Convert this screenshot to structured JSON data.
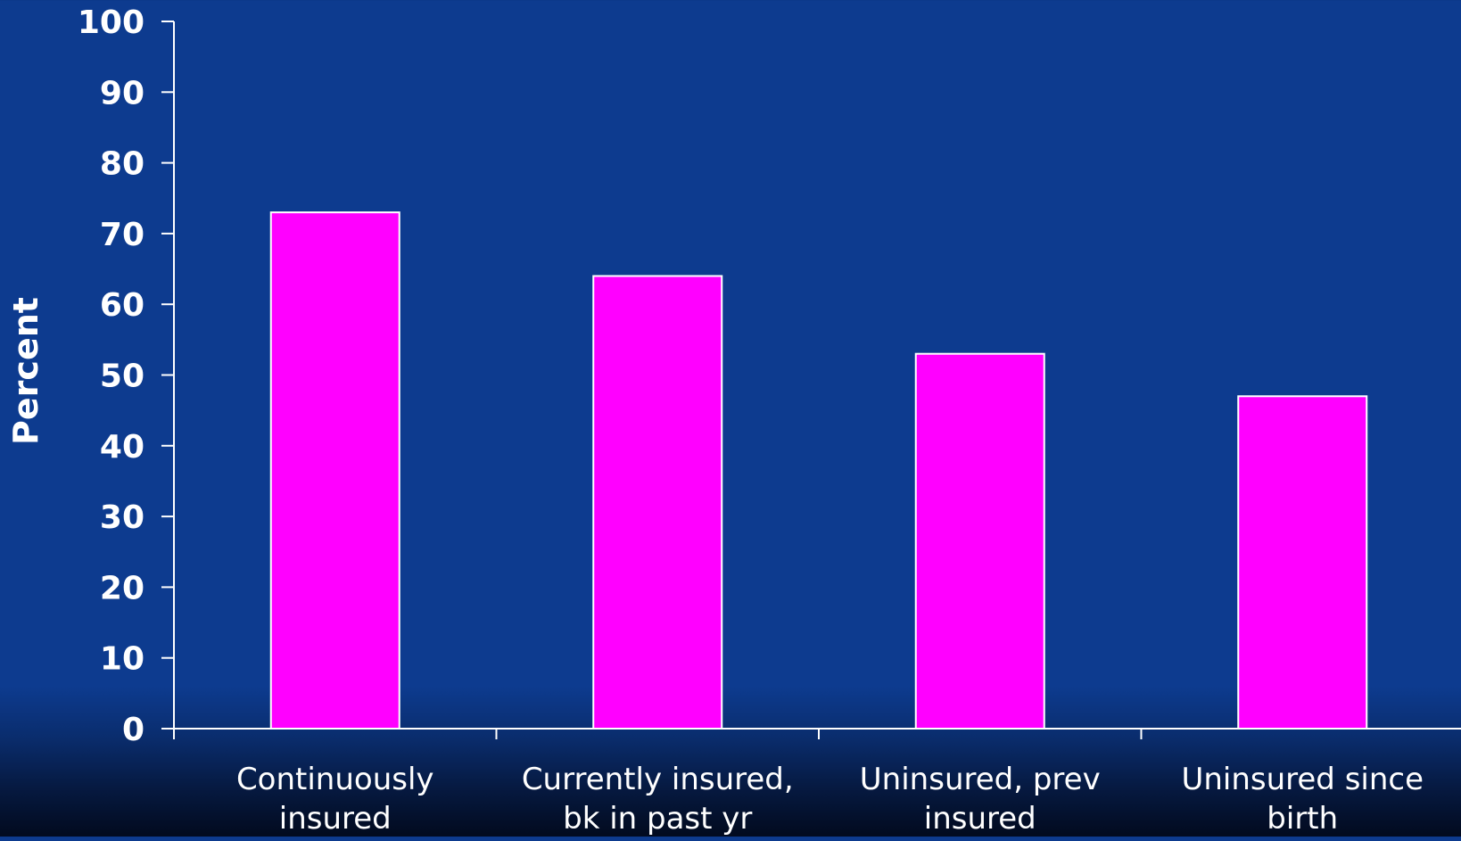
{
  "chart_data": {
    "type": "bar",
    "title": "",
    "xlabel": "",
    "ylabel": "Percent",
    "ylim": [
      0,
      100
    ],
    "yticks": [
      0,
      10,
      20,
      30,
      40,
      50,
      60,
      70,
      80,
      90,
      100
    ],
    "categories": [
      [
        "Continuously",
        "insured"
      ],
      [
        "Currently insured,",
        "bk in past yr"
      ],
      [
        "Uninsured, prev",
        "insured"
      ],
      [
        "Uninsured since",
        "birth"
      ]
    ],
    "values": [
      73,
      64,
      53,
      47
    ],
    "grid": false,
    "legend": "none",
    "colors": {
      "bar_fill": "#ff00ff",
      "bar_stroke": "#ffffff",
      "axis": "#ffffff",
      "background": "#0d3b8f"
    }
  }
}
